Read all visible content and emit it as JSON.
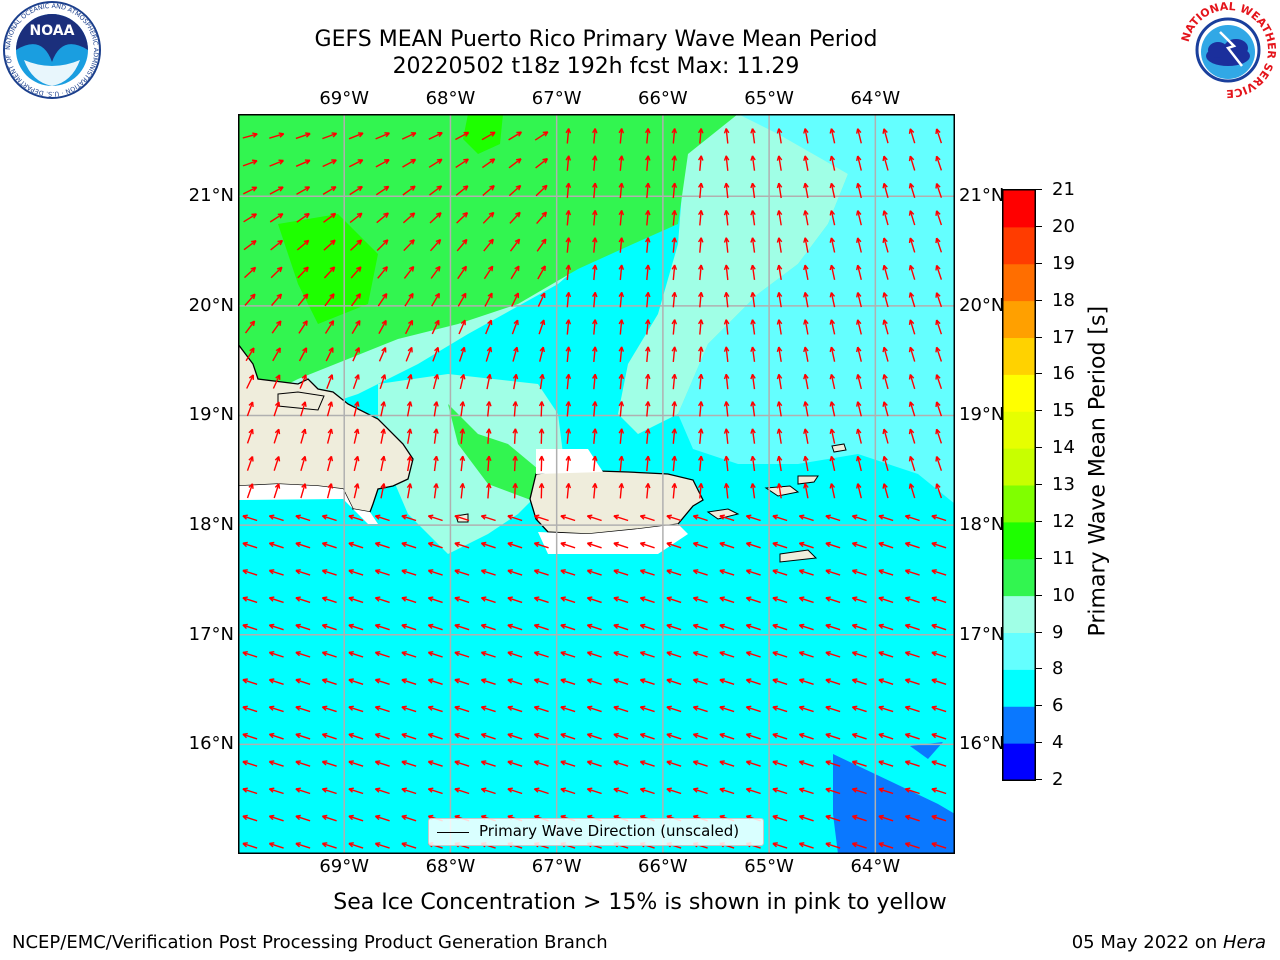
{
  "header": {
    "title_line1": "GEFS MEAN Puerto Rico Primary Wave Mean Period",
    "title_line2": "20220502 t18z 192h fcst   Max: 11.29"
  },
  "logos": {
    "left": "noaa-logo",
    "right": "nws-logo",
    "left_ring_text": "NATIONAL OCEANIC AND ATMOSPHERIC ADMINISTRATION · U.S. DEPARTMENT OF COMMERCE",
    "right_ring_text": "NATIONAL WEATHER SERVICE",
    "left_center": "NOAA"
  },
  "chart_data": {
    "type": "heatmap",
    "title": "GEFS MEAN Puerto Rico Primary Wave Mean Period",
    "subtitle": "20220502 t18z 192h fcst   Max: 11.29",
    "lon_ticks": [
      "69°W",
      "68°W",
      "67°W",
      "66°W",
      "65°W",
      "64°W"
    ],
    "lat_ticks": [
      "21°N",
      "20°N",
      "19°N",
      "18°N",
      "17°N",
      "16°N"
    ],
    "lon_values": [
      -69,
      -68,
      -67,
      -66,
      -65,
      -64
    ],
    "lat_values": [
      21,
      20,
      19,
      18,
      17,
      16
    ],
    "lon_range": [
      -70.0,
      -63.25
    ],
    "lat_range": [
      15.0,
      21.75
    ],
    "grid": true,
    "max_value": 11.29,
    "colorbar": {
      "label": "Primary Wave Mean Period [s]",
      "levels": [
        2,
        4,
        6,
        8,
        9,
        10,
        11,
        12,
        13,
        14,
        15,
        16,
        17,
        18,
        19,
        20,
        21
      ],
      "colors": [
        "#0000ff",
        "#0a78ff",
        "#00ffff",
        "#64ffff",
        "#a0ffe6",
        "#32f550",
        "#1eff00",
        "#80ff00",
        "#c8ff00",
        "#e6ff00",
        "#ffff00",
        "#ffd200",
        "#ffa000",
        "#ff6e00",
        "#ff3c00",
        "#ff0000"
      ],
      "position": "right"
    },
    "legend": {
      "entries": [
        "Primary Wave Direction (unscaled)"
      ],
      "placement": "bottom-center"
    },
    "arrow_color": "#ff0000",
    "land_color": "#efeddc",
    "note": "Sea Ice Concentration > 15% is shown in pink to yellow"
  },
  "footer": {
    "left": "NCEP/EMC/Verification Post Processing Product Generation Branch",
    "right_date": "05 May 2022 on ",
    "right_host": "Hera"
  }
}
